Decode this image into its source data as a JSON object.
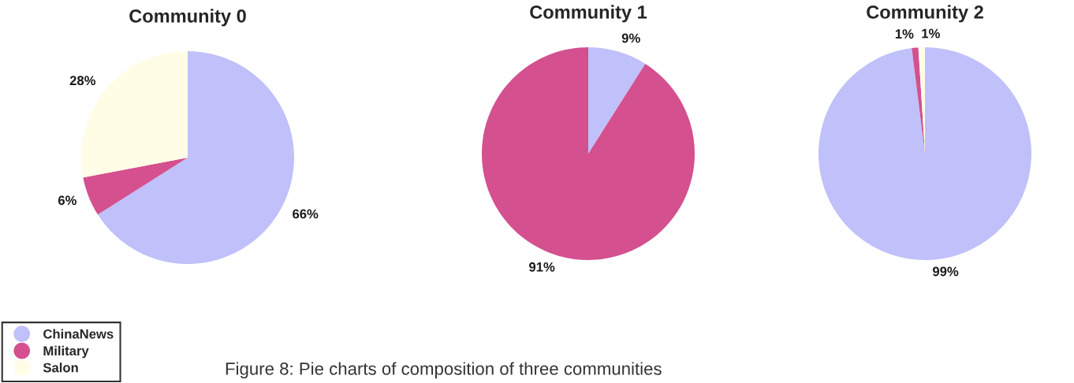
{
  "chart_data": [
    {
      "type": "pie",
      "title": "Community 0",
      "categories": [
        "ChinaNews",
        "Military",
        "Salon"
      ],
      "values": [
        66,
        6,
        28
      ],
      "colors": [
        "#c0c0fa",
        "#d4508f",
        "#fffde6"
      ],
      "value_labels": [
        "66%",
        "6%",
        "28%"
      ],
      "legend": "bottom left",
      "annotations": [
        "Figure 8: Pie charts of composition of three communities"
      ]
    },
    {
      "type": "pie",
      "title": "Community 1",
      "categories": [
        null,
        null
      ],
      "values": [
        9,
        91
      ],
      "colors": [
        "#c0c0fa",
        "#d4508f"
      ],
      "value_labels": [
        "9%",
        "91%"
      ]
    },
    {
      "type": "pie",
      "title": "Community 2",
      "categories": [
        null,
        null,
        null
      ],
      "values": [
        99,
        1,
        1
      ],
      "colors": [
        "#c0c0fa",
        "#d4508f",
        "#fffde6"
      ],
      "value_labels": [
        "99%",
        "1%",
        "1%"
      ]
    }
  ]
}
